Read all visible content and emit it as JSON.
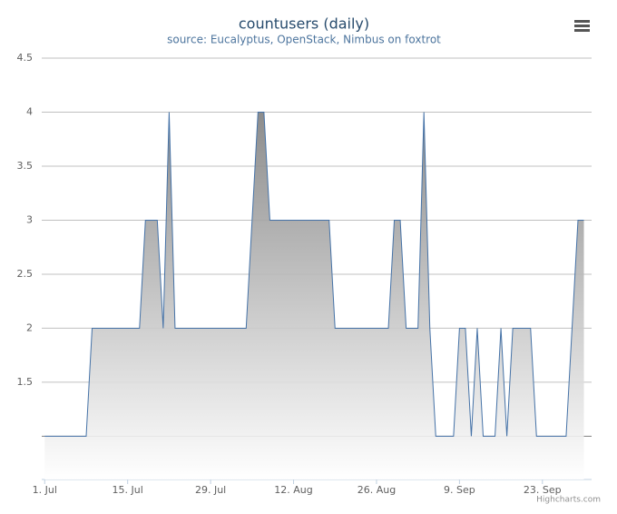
{
  "chart_data": {
    "type": "area",
    "title": "countusers (daily)",
    "subtitle": "source: Eucalyptus, OpenStack, Nimbus on foxtrot",
    "credits": "Highcharts.com",
    "x": [
      0,
      1,
      2,
      3,
      4,
      5,
      6,
      7,
      8,
      9,
      10,
      11,
      12,
      13,
      14,
      15,
      16,
      17,
      18,
      19,
      20,
      21,
      22,
      23,
      24,
      25,
      26,
      27,
      28,
      29,
      30,
      31,
      32,
      33,
      34,
      35,
      36,
      37,
      38,
      39,
      40,
      41,
      42,
      43,
      44,
      45,
      46,
      47,
      48,
      49,
      50,
      51,
      52,
      53,
      54,
      55,
      56,
      57,
      58,
      59,
      60,
      61,
      62,
      63,
      64,
      65,
      66,
      67,
      68,
      69,
      70,
      71,
      72,
      73,
      74,
      75,
      76,
      77,
      78,
      79,
      80,
      81,
      82,
      83,
      84,
      85,
      86,
      87,
      88,
      89,
      90,
      91
    ],
    "values": [
      1,
      1,
      1,
      1,
      1,
      1,
      1,
      1,
      2,
      2,
      2,
      2,
      2,
      2,
      2,
      2,
      2,
      3,
      3,
      3,
      2,
      4,
      2,
      2,
      2,
      2,
      2,
      2,
      2,
      2,
      2,
      2,
      2,
      2,
      2,
      3,
      4,
      4,
      3,
      3,
      3,
      3,
      3,
      3,
      3,
      3,
      3,
      3,
      3,
      2,
      2,
      2,
      2,
      2,
      2,
      2,
      2,
      2,
      2,
      3,
      3,
      2,
      2,
      2,
      4,
      2,
      1,
      1,
      1,
      1,
      2,
      2,
      1,
      2,
      1,
      1,
      1,
      2,
      1,
      2,
      2,
      2,
      2,
      1,
      1,
      1,
      1,
      1,
      1,
      2,
      3,
      3
    ],
    "color": "#4572a7",
    "xlim": [
      -0.5,
      92.3
    ],
    "xticks": [
      {
        "value": 0,
        "label": "1. Jul"
      },
      {
        "value": 14,
        "label": "15. Jul"
      },
      {
        "value": 28,
        "label": "29. Jul"
      },
      {
        "value": 42,
        "label": "12. Aug"
      },
      {
        "value": 56,
        "label": "26. Aug"
      },
      {
        "value": 70,
        "label": "9. Sep"
      },
      {
        "value": 84,
        "label": "23. Sep"
      }
    ],
    "ylim": [
      0.6,
      4.5
    ],
    "yticks": [
      1.5,
      2,
      2.5,
      3,
      3.5,
      4,
      4.5
    ],
    "threshold": 1,
    "grid": true
  }
}
